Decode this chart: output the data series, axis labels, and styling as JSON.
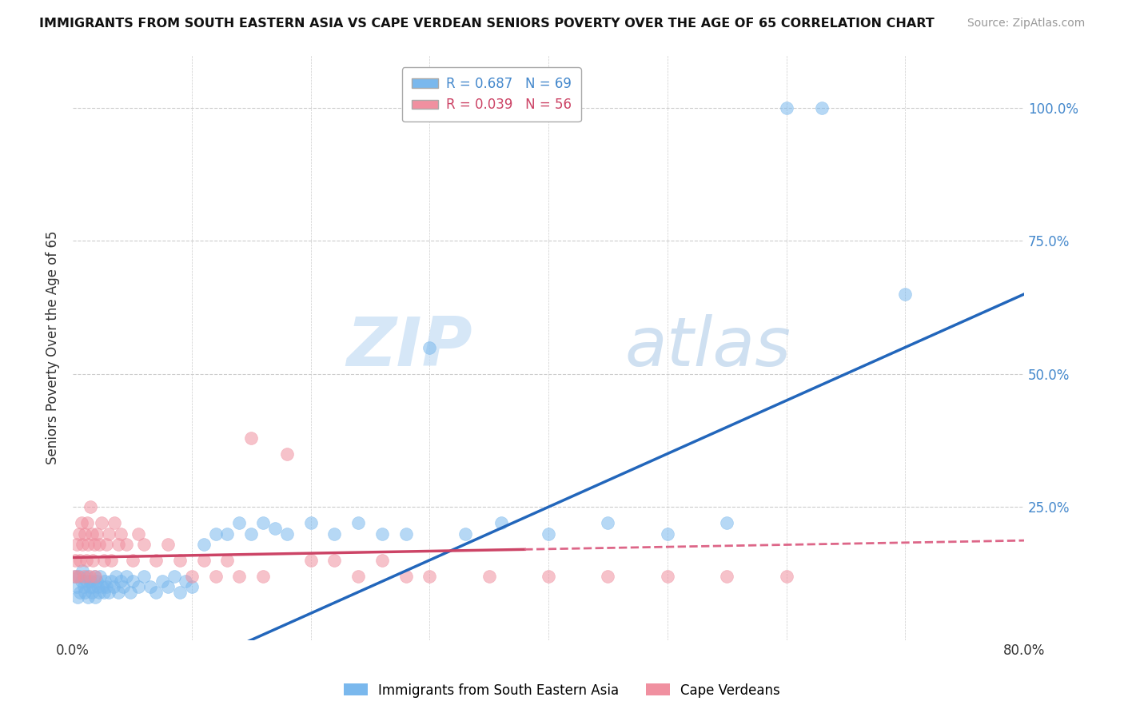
{
  "title": "IMMIGRANTS FROM SOUTH EASTERN ASIA VS CAPE VERDEAN SENIORS POVERTY OVER THE AGE OF 65 CORRELATION CHART",
  "source": "Source: ZipAtlas.com",
  "ylabel": "Seniors Poverty Over the Age of 65",
  "background_color": "#ffffff",
  "watermark_zip": "ZIP",
  "watermark_atlas": "atlas",
  "series1_label": "Immigrants from South Eastern Asia",
  "series1_color": "#7ab8ed",
  "series1_edge": "#5a9fd4",
  "series1_R": 0.687,
  "series1_N": 69,
  "series1_x": [
    0.002,
    0.003,
    0.004,
    0.005,
    0.006,
    0.007,
    0.008,
    0.009,
    0.01,
    0.011,
    0.012,
    0.013,
    0.014,
    0.015,
    0.016,
    0.017,
    0.018,
    0.019,
    0.02,
    0.021,
    0.022,
    0.023,
    0.025,
    0.026,
    0.027,
    0.028,
    0.03,
    0.032,
    0.034,
    0.036,
    0.038,
    0.04,
    0.042,
    0.045,
    0.048,
    0.05,
    0.055,
    0.06,
    0.065,
    0.07,
    0.075,
    0.08,
    0.085,
    0.09,
    0.095,
    0.1,
    0.11,
    0.12,
    0.13,
    0.14,
    0.15,
    0.16,
    0.17,
    0.18,
    0.2,
    0.22,
    0.24,
    0.26,
    0.28,
    0.3,
    0.33,
    0.36,
    0.4,
    0.45,
    0.5,
    0.55,
    0.6,
    0.63,
    0.7
  ],
  "series1_y": [
    0.12,
    0.1,
    0.08,
    0.12,
    0.09,
    0.11,
    0.13,
    0.1,
    0.09,
    0.11,
    0.12,
    0.08,
    0.1,
    0.11,
    0.09,
    0.1,
    0.12,
    0.08,
    0.11,
    0.1,
    0.09,
    0.12,
    0.1,
    0.09,
    0.11,
    0.1,
    0.09,
    0.11,
    0.1,
    0.12,
    0.09,
    0.11,
    0.1,
    0.12,
    0.09,
    0.11,
    0.1,
    0.12,
    0.1,
    0.09,
    0.11,
    0.1,
    0.12,
    0.09,
    0.11,
    0.1,
    0.18,
    0.2,
    0.2,
    0.22,
    0.2,
    0.22,
    0.21,
    0.2,
    0.22,
    0.2,
    0.22,
    0.2,
    0.2,
    0.55,
    0.2,
    0.22,
    0.2,
    0.22,
    0.2,
    0.22,
    1.0,
    1.0,
    0.65
  ],
  "series2_label": "Cape Verdeans",
  "series2_color": "#f090a0",
  "series2_edge": "#d06070",
  "series2_R": 0.039,
  "series2_N": 56,
  "series2_x": [
    0.001,
    0.002,
    0.003,
    0.004,
    0.005,
    0.006,
    0.007,
    0.008,
    0.009,
    0.01,
    0.011,
    0.012,
    0.013,
    0.014,
    0.015,
    0.016,
    0.017,
    0.018,
    0.019,
    0.02,
    0.022,
    0.024,
    0.026,
    0.028,
    0.03,
    0.032,
    0.035,
    0.038,
    0.04,
    0.045,
    0.05,
    0.055,
    0.06,
    0.07,
    0.08,
    0.09,
    0.1,
    0.11,
    0.12,
    0.13,
    0.14,
    0.15,
    0.16,
    0.18,
    0.2,
    0.22,
    0.24,
    0.26,
    0.28,
    0.3,
    0.35,
    0.4,
    0.45,
    0.5,
    0.55,
    0.6
  ],
  "series2_y": [
    0.12,
    0.15,
    0.18,
    0.12,
    0.2,
    0.15,
    0.22,
    0.18,
    0.12,
    0.2,
    0.15,
    0.22,
    0.18,
    0.12,
    0.25,
    0.2,
    0.15,
    0.18,
    0.12,
    0.2,
    0.18,
    0.22,
    0.15,
    0.18,
    0.2,
    0.15,
    0.22,
    0.18,
    0.2,
    0.18,
    0.15,
    0.2,
    0.18,
    0.15,
    0.18,
    0.15,
    0.12,
    0.15,
    0.12,
    0.15,
    0.12,
    0.38,
    0.12,
    0.35,
    0.15,
    0.15,
    0.12,
    0.15,
    0.12,
    0.12,
    0.12,
    0.12,
    0.12,
    0.12,
    0.12,
    0.12
  ],
  "xlim": [
    0.0,
    0.8
  ],
  "ylim": [
    0.0,
    1.1
  ],
  "x_ticks": [
    0.0,
    0.1,
    0.2,
    0.3,
    0.4,
    0.5,
    0.6,
    0.7,
    0.8
  ],
  "x_tick_labels": [
    "0.0%",
    "",
    "",
    "",
    "",
    "",
    "",
    "",
    "80.0%"
  ],
  "y_ticks": [
    0.0,
    0.25,
    0.5,
    0.75,
    1.0
  ],
  "y_right_labels": [
    "",
    "25.0%",
    "50.0%",
    "75.0%",
    "100.0%"
  ],
  "grid_color": "#cccccc",
  "line1_color": "#2266bb",
  "line2_color": "#cc4466",
  "line2_dash_color": "#dd6688"
}
